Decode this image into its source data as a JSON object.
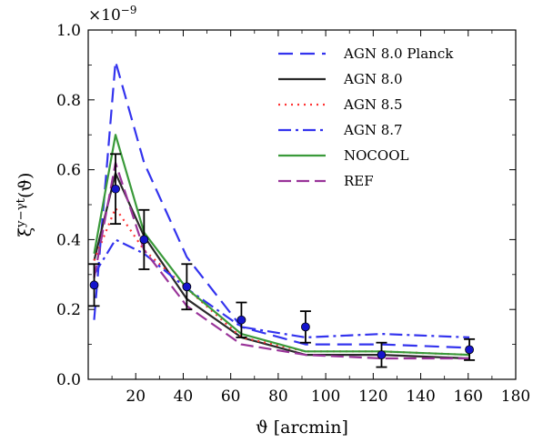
{
  "chart_data": {
    "type": "line",
    "title": "",
    "xlabel": "ϑ [arcmin]",
    "ylabel": "ξ^{y−γt}(ϑ)",
    "y_scale_label": "×10^{−9}",
    "xlim": [
      0,
      180
    ],
    "ylim": [
      0.0,
      1.0
    ],
    "xticks": [
      20,
      40,
      60,
      80,
      100,
      120,
      140,
      160,
      180
    ],
    "xtick_labels": [
      "20",
      "40",
      "60",
      "80",
      "100",
      "120",
      "140",
      "160",
      "180"
    ],
    "yticks": [
      0.0,
      0.2,
      0.4,
      0.6,
      0.8,
      1.0
    ],
    "ytick_labels": [
      "0.0",
      "0.2",
      "0.4",
      "0.6",
      "0.8",
      "1.0"
    ],
    "grid": false,
    "legend_position": "top-right",
    "x": [
      2.5,
      11.5,
      23.5,
      41.5,
      64.5,
      91.5,
      123.5,
      160.5
    ],
    "series": [
      {
        "name": "AGN 8.0 Planck",
        "color": "#3333ee",
        "dash": "16,8",
        "values": [
          0.17,
          0.91,
          0.62,
          0.35,
          0.15,
          0.1,
          0.1,
          0.09
        ]
      },
      {
        "name": "AGN 8.0",
        "color": "#2a2a2a",
        "dash": "none",
        "values": [
          0.34,
          0.59,
          0.41,
          0.23,
          0.12,
          0.07,
          0.07,
          0.06
        ]
      },
      {
        "name": "AGN 8.5",
        "color": "#ff3333",
        "dash": "2,5",
        "values": [
          0.34,
          0.49,
          0.37,
          0.26,
          0.12,
          0.08,
          0.08,
          0.07
        ]
      },
      {
        "name": "AGN 8.7",
        "color": "#3333ee",
        "dash": "14,5,3,5",
        "values": [
          0.3,
          0.4,
          0.36,
          0.26,
          0.15,
          0.12,
          0.13,
          0.12
        ]
      },
      {
        "name": "NOCOOL",
        "color": "#3a9a3a",
        "dash": "none",
        "values": [
          0.36,
          0.7,
          0.42,
          0.26,
          0.13,
          0.08,
          0.08,
          0.07
        ]
      },
      {
        "name": "REF",
        "color": "#993399",
        "dash": "14,6",
        "values": [
          0.29,
          0.62,
          0.37,
          0.21,
          0.1,
          0.07,
          0.06,
          0.06
        ]
      }
    ],
    "observed": {
      "x": [
        2.5,
        11.5,
        23.5,
        41.5,
        64.5,
        91.5,
        123.5,
        160.5
      ],
      "values": [
        0.27,
        0.545,
        0.4,
        0.265,
        0.17,
        0.15,
        0.07,
        0.085
      ],
      "errors": [
        0.06,
        0.1,
        0.085,
        0.065,
        0.05,
        0.045,
        0.035,
        0.03
      ],
      "marker_color": "#1515cc"
    }
  }
}
